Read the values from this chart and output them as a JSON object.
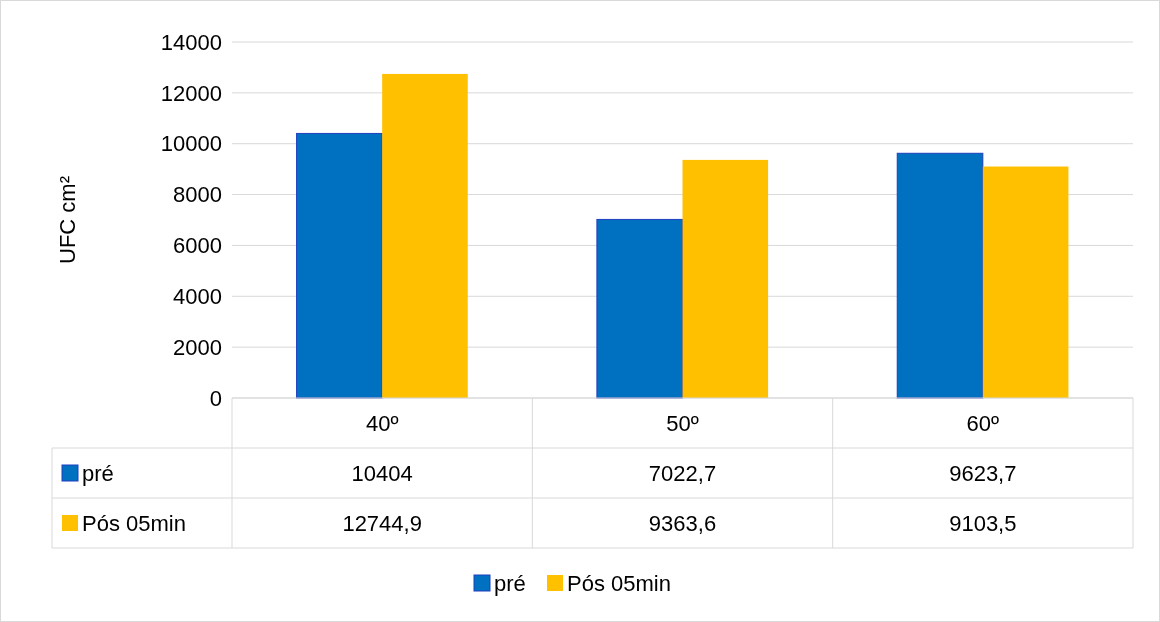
{
  "chart_data": {
    "type": "bar",
    "ylabel": "UFC cm²",
    "categories": [
      "40º",
      "50º",
      "60º"
    ],
    "series": [
      {
        "name": "pré",
        "color": "#0070c0",
        "values": [
          10404,
          7022.7,
          9623.7
        ],
        "value_labels": [
          "10404",
          "7022,7",
          "9623,7"
        ]
      },
      {
        "name": "Pós 05min",
        "color": "#ffc000",
        "values": [
          12744.9,
          9363.6,
          9103.5
        ],
        "value_labels": [
          "12744,9",
          "9363,6",
          "9103,5"
        ]
      }
    ],
    "ylim": [
      0,
      14000
    ],
    "yticks": [
      0,
      2000,
      4000,
      6000,
      8000,
      10000,
      12000,
      14000
    ],
    "grid": "y",
    "legend": "bottom"
  }
}
